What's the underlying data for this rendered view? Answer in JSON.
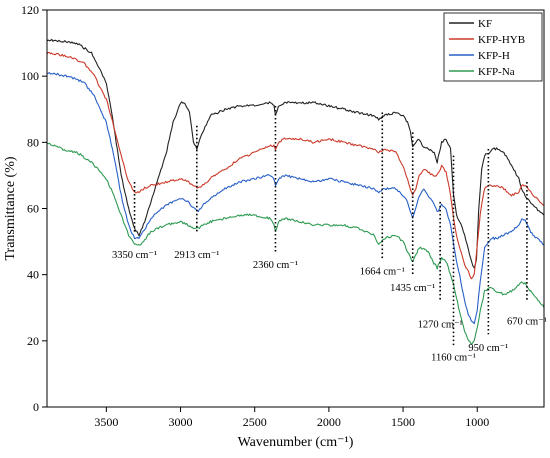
{
  "chart_data": {
    "type": "line",
    "title": "",
    "xlabel": "Wavenumber (cm⁻¹)",
    "ylabel": "Transmittance (%)",
    "xlim": [
      3900,
      550
    ],
    "ylim": [
      0,
      120
    ],
    "x_reversed": true,
    "xticks": [
      3500,
      3000,
      2500,
      2000,
      1500,
      1000
    ],
    "yticks": [
      0,
      20,
      40,
      60,
      80,
      100,
      120
    ],
    "grid": false,
    "legend_position": "top-right",
    "series": [
      {
        "name": "KF",
        "color": "#222222",
        "points": [
          [
            3900,
            111
          ],
          [
            3700,
            110
          ],
          [
            3600,
            107
          ],
          [
            3500,
            98
          ],
          [
            3450,
            85
          ],
          [
            3400,
            70
          ],
          [
            3350,
            60
          ],
          [
            3310,
            54
          ],
          [
            3280,
            52
          ],
          [
            3250,
            55
          ],
          [
            3200,
            62
          ],
          [
            3100,
            76
          ],
          [
            3050,
            86
          ],
          [
            3000,
            92
          ],
          [
            2970,
            92
          ],
          [
            2940,
            89
          ],
          [
            2913,
            80
          ],
          [
            2890,
            78
          ],
          [
            2860,
            82
          ],
          [
            2800,
            88
          ],
          [
            2700,
            90
          ],
          [
            2600,
            91
          ],
          [
            2500,
            91
          ],
          [
            2400,
            92
          ],
          [
            2370,
            91
          ],
          [
            2360,
            88
          ],
          [
            2340,
            91
          ],
          [
            2300,
            92
          ],
          [
            2200,
            92
          ],
          [
            2100,
            92
          ],
          [
            2000,
            91
          ],
          [
            1900,
            90
          ],
          [
            1800,
            89
          ],
          [
            1700,
            88
          ],
          [
            1664,
            87
          ],
          [
            1630,
            88
          ],
          [
            1550,
            89
          ],
          [
            1500,
            88
          ],
          [
            1470,
            86
          ],
          [
            1450,
            83
          ],
          [
            1435,
            79
          ],
          [
            1415,
            80
          ],
          [
            1390,
            81
          ],
          [
            1370,
            79
          ],
          [
            1330,
            78
          ],
          [
            1290,
            77
          ],
          [
            1270,
            74
          ],
          [
            1240,
            80
          ],
          [
            1210,
            81
          ],
          [
            1180,
            78
          ],
          [
            1160,
            64
          ],
          [
            1140,
            58
          ],
          [
            1110,
            55
          ],
          [
            1085,
            52
          ],
          [
            1060,
            48
          ],
          [
            1040,
            44
          ],
          [
            1020,
            42
          ],
          [
            1005,
            45
          ],
          [
            990,
            60
          ],
          [
            970,
            72
          ],
          [
            950,
            76
          ],
          [
            920,
            77
          ],
          [
            900,
            78
          ],
          [
            870,
            78
          ],
          [
            820,
            77
          ],
          [
            770,
            73
          ],
          [
            720,
            69
          ],
          [
            700,
            66
          ],
          [
            670,
            63
          ],
          [
            640,
            62
          ],
          [
            600,
            60
          ],
          [
            550,
            58
          ]
        ]
      },
      {
        "name": "KFP-HYB",
        "color": "#cc3b2a",
        "points": [
          [
            3900,
            107
          ],
          [
            3750,
            106
          ],
          [
            3650,
            104
          ],
          [
            3580,
            100
          ],
          [
            3500,
            93
          ],
          [
            3450,
            85
          ],
          [
            3400,
            76
          ],
          [
            3350,
            68
          ],
          [
            3310,
            65
          ],
          [
            3280,
            65
          ],
          [
            3250,
            66
          ],
          [
            3200,
            67
          ],
          [
            3100,
            68
          ],
          [
            3000,
            69
          ],
          [
            2950,
            68
          ],
          [
            2913,
            67
          ],
          [
            2880,
            66
          ],
          [
            2850,
            67
          ],
          [
            2800,
            69
          ],
          [
            2700,
            72
          ],
          [
            2600,
            75
          ],
          [
            2500,
            77
          ],
          [
            2400,
            79
          ],
          [
            2370,
            79
          ],
          [
            2360,
            78
          ],
          [
            2340,
            80
          ],
          [
            2300,
            81
          ],
          [
            2200,
            81
          ],
          [
            2100,
            80
          ],
          [
            2000,
            81
          ],
          [
            1900,
            80
          ],
          [
            1800,
            79
          ],
          [
            1700,
            78
          ],
          [
            1664,
            77
          ],
          [
            1630,
            78
          ],
          [
            1550,
            77
          ],
          [
            1500,
            73
          ],
          [
            1470,
            69
          ],
          [
            1450,
            66
          ],
          [
            1435,
            64
          ],
          [
            1415,
            66
          ],
          [
            1390,
            70
          ],
          [
            1360,
            72
          ],
          [
            1330,
            71
          ],
          [
            1300,
            70
          ],
          [
            1270,
            70
          ],
          [
            1240,
            73
          ],
          [
            1210,
            71
          ],
          [
            1180,
            64
          ],
          [
            1160,
            57
          ],
          [
            1140,
            52
          ],
          [
            1110,
            47
          ],
          [
            1085,
            43
          ],
          [
            1060,
            41
          ],
          [
            1040,
            39
          ],
          [
            1020,
            40
          ],
          [
            1000,
            49
          ],
          [
            980,
            58
          ],
          [
            960,
            64
          ],
          [
            950,
            66
          ],
          [
            920,
            67
          ],
          [
            900,
            67
          ],
          [
            870,
            67
          ],
          [
            820,
            66
          ],
          [
            770,
            64
          ],
          [
            720,
            65
          ],
          [
            700,
            67
          ],
          [
            670,
            67
          ],
          [
            640,
            65
          ],
          [
            600,
            63
          ],
          [
            550,
            61
          ]
        ]
      },
      {
        "name": "KFP-H",
        "color": "#2860c8",
        "points": [
          [
            3900,
            101
          ],
          [
            3750,
            100
          ],
          [
            3650,
            98
          ],
          [
            3580,
            94
          ],
          [
            3500,
            86
          ],
          [
            3450,
            76
          ],
          [
            3400,
            64
          ],
          [
            3350,
            55
          ],
          [
            3310,
            51
          ],
          [
            3280,
            51
          ],
          [
            3250,
            53
          ],
          [
            3200,
            57
          ],
          [
            3100,
            61
          ],
          [
            3000,
            63
          ],
          [
            2950,
            62
          ],
          [
            2913,
            60
          ],
          [
            2880,
            59
          ],
          [
            2850,
            61
          ],
          [
            2800,
            63
          ],
          [
            2700,
            66
          ],
          [
            2600,
            68
          ],
          [
            2500,
            69
          ],
          [
            2400,
            70
          ],
          [
            2370,
            69
          ],
          [
            2360,
            67
          ],
          [
            2340,
            69
          ],
          [
            2300,
            70
          ],
          [
            2200,
            69
          ],
          [
            2100,
            68
          ],
          [
            2000,
            69
          ],
          [
            1900,
            68
          ],
          [
            1800,
            67
          ],
          [
            1700,
            66
          ],
          [
            1664,
            65
          ],
          [
            1630,
            66
          ],
          [
            1550,
            66
          ],
          [
            1500,
            64
          ],
          [
            1470,
            62
          ],
          [
            1450,
            59
          ],
          [
            1435,
            57
          ],
          [
            1415,
            60
          ],
          [
            1390,
            64
          ],
          [
            1360,
            66
          ],
          [
            1330,
            64
          ],
          [
            1300,
            62
          ],
          [
            1270,
            59
          ],
          [
            1240,
            61
          ],
          [
            1210,
            60
          ],
          [
            1180,
            55
          ],
          [
            1160,
            49
          ],
          [
            1140,
            44
          ],
          [
            1110,
            38
          ],
          [
            1085,
            32
          ],
          [
            1060,
            28
          ],
          [
            1040,
            26
          ],
          [
            1020,
            25
          ],
          [
            1000,
            29
          ],
          [
            980,
            38
          ],
          [
            960,
            45
          ],
          [
            950,
            48
          ],
          [
            920,
            50
          ],
          [
            900,
            51
          ],
          [
            870,
            51
          ],
          [
            820,
            52
          ],
          [
            770,
            53
          ],
          [
            720,
            55
          ],
          [
            700,
            57
          ],
          [
            670,
            56
          ],
          [
            640,
            53
          ],
          [
            600,
            51
          ],
          [
            550,
            49
          ]
        ]
      },
      {
        "name": "KFP-Na",
        "color": "#2e9a52",
        "points": [
          [
            3900,
            80
          ],
          [
            3800,
            78
          ],
          [
            3700,
            77
          ],
          [
            3600,
            74
          ],
          [
            3500,
            69
          ],
          [
            3450,
            64
          ],
          [
            3400,
            58
          ],
          [
            3350,
            52
          ],
          [
            3310,
            49
          ],
          [
            3280,
            49
          ],
          [
            3250,
            50
          ],
          [
            3200,
            53
          ],
          [
            3100,
            55
          ],
          [
            3000,
            56
          ],
          [
            2950,
            55
          ],
          [
            2913,
            54
          ],
          [
            2880,
            54
          ],
          [
            2850,
            55
          ],
          [
            2800,
            56
          ],
          [
            2700,
            57
          ],
          [
            2600,
            58
          ],
          [
            2500,
            58
          ],
          [
            2400,
            57
          ],
          [
            2370,
            55
          ],
          [
            2360,
            53
          ],
          [
            2340,
            56
          ],
          [
            2300,
            57
          ],
          [
            2200,
            56
          ],
          [
            2100,
            55
          ],
          [
            2000,
            55
          ],
          [
            1900,
            55
          ],
          [
            1800,
            54
          ],
          [
            1700,
            52
          ],
          [
            1664,
            49
          ],
          [
            1630,
            51
          ],
          [
            1550,
            52
          ],
          [
            1500,
            50
          ],
          [
            1470,
            47
          ],
          [
            1450,
            45
          ],
          [
            1435,
            44
          ],
          [
            1415,
            46
          ],
          [
            1390,
            48
          ],
          [
            1360,
            48
          ],
          [
            1330,
            47
          ],
          [
            1300,
            44
          ],
          [
            1270,
            42
          ],
          [
            1240,
            45
          ],
          [
            1210,
            44
          ],
          [
            1180,
            40
          ],
          [
            1160,
            37
          ],
          [
            1140,
            33
          ],
          [
            1110,
            27
          ],
          [
            1085,
            23
          ],
          [
            1060,
            20
          ],
          [
            1040,
            19
          ],
          [
            1020,
            20
          ],
          [
            1000,
            24
          ],
          [
            980,
            29
          ],
          [
            960,
            33
          ],
          [
            950,
            35
          ],
          [
            920,
            36
          ],
          [
            900,
            36
          ],
          [
            870,
            35
          ],
          [
            820,
            34
          ],
          [
            770,
            35
          ],
          [
            720,
            37
          ],
          [
            700,
            38
          ],
          [
            670,
            37
          ],
          [
            640,
            35
          ],
          [
            600,
            33
          ],
          [
            550,
            30
          ]
        ]
      }
    ],
    "annotations": [
      {
        "label": "3350 cm⁻¹",
        "x": 3310,
        "y_top": 68,
        "y_bottom": 53,
        "label_y": 45,
        "anchor": "middle"
      },
      {
        "label": "2913 cm⁻¹",
        "x": 2890,
        "y_top": 85,
        "y_bottom": 53,
        "label_y": 45,
        "anchor": "middle"
      },
      {
        "label": "2360 cm⁻¹",
        "x": 2360,
        "y_top": 91,
        "y_bottom": 47,
        "label_y": 42,
        "anchor": "middle"
      },
      {
        "label": "1664 cm⁻¹",
        "x": 1640,
        "y_top": 89,
        "y_bottom": 45,
        "label_y": 40,
        "anchor": "middle"
      },
      {
        "label": "1435 cm⁻¹",
        "x": 1435,
        "y_top": 83,
        "y_bottom": 40,
        "label_y": 35,
        "anchor": "middle"
      },
      {
        "label": "1270 cm⁻¹",
        "x": 1250,
        "y_top": 62,
        "y_bottom": 32,
        "label_y": 24,
        "anchor": "middle"
      },
      {
        "label": "1160 cm⁻¹",
        "x": 1160,
        "y_top": 76,
        "y_bottom": 18,
        "label_y": 14,
        "anchor": "middle"
      },
      {
        "label": "950 cm⁻¹",
        "x": 925,
        "y_top": 78,
        "y_bottom": 22,
        "label_y": 17,
        "anchor": "middle"
      },
      {
        "label": "670 cm⁻¹",
        "x": 665,
        "y_top": 68,
        "y_bottom": 32,
        "label_y": 25,
        "anchor": "middle"
      }
    ]
  }
}
